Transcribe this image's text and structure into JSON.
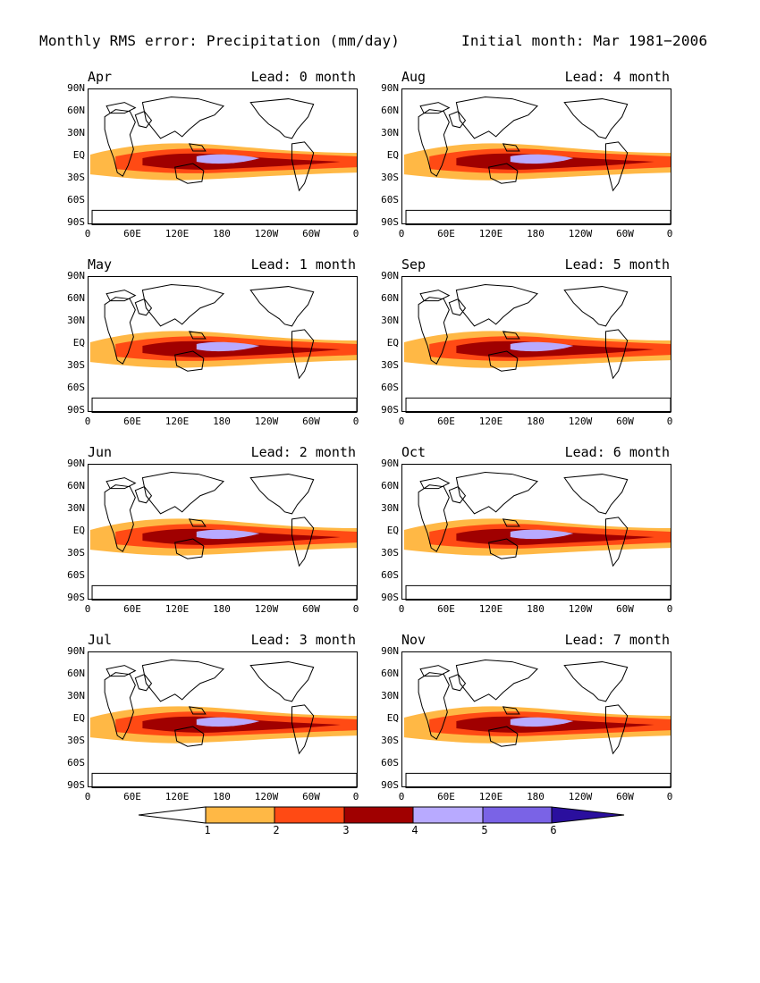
{
  "header": {
    "title_left": "Monthly RMS error: Precipitation (mm/day)",
    "title_right": "Initial month: Mar 1981−2006"
  },
  "panels": [
    {
      "month": "Apr",
      "lead": "Lead: 0 month",
      "xticks": [
        "0",
        "60E",
        "120E",
        "180",
        "120W",
        "60W",
        "0"
      ]
    },
    {
      "month": "Aug",
      "lead": "Lead: 4 month",
      "xticks": [
        "0",
        "60E",
        "120E",
        "180",
        "120W",
        "60W",
        "0"
      ]
    },
    {
      "month": "May",
      "lead": "Lead: 1 month",
      "xticks": [
        "0",
        "60E",
        "120E",
        "180",
        "120W",
        "60W",
        "0"
      ]
    },
    {
      "month": "Sep",
      "lead": "Lead: 5 month",
      "xticks": [
        "0",
        "60E",
        "120E",
        "180",
        "120W",
        "60W",
        "0"
      ]
    },
    {
      "month": "Jun",
      "lead": "Lead: 2 month",
      "xticks": [
        "0",
        "60E",
        "120E",
        "180",
        "120W",
        "60W",
        "0"
      ]
    },
    {
      "month": "Oct",
      "lead": "Lead: 6 month",
      "xticks": [
        "0",
        "60E",
        "120E",
        "180",
        "120W",
        "60W",
        "0"
      ]
    },
    {
      "month": "Jul",
      "lead": "Lead: 3 month",
      "xticks": [
        "0",
        "60E",
        "120E",
        "180",
        "120W",
        "60W",
        "0"
      ]
    },
    {
      "month": "Nov",
      "lead": "Lead: 7 month",
      "xticks": [
        "0",
        "60E",
        "120E",
        "180",
        "120W",
        "60W",
        "0"
      ]
    }
  ],
  "yticks": [
    "90N",
    "60N",
    "30N",
    "EQ",
    "30S",
    "60S",
    "90S"
  ],
  "colorbar": {
    "labels": [
      "1",
      "2",
      "3",
      "4",
      "5",
      "6"
    ],
    "colors": [
      "#ffb845",
      "#ff4a14",
      "#a00000",
      "#b8aaff",
      "#7a63e6",
      "#2a0f9e"
    ]
  }
}
